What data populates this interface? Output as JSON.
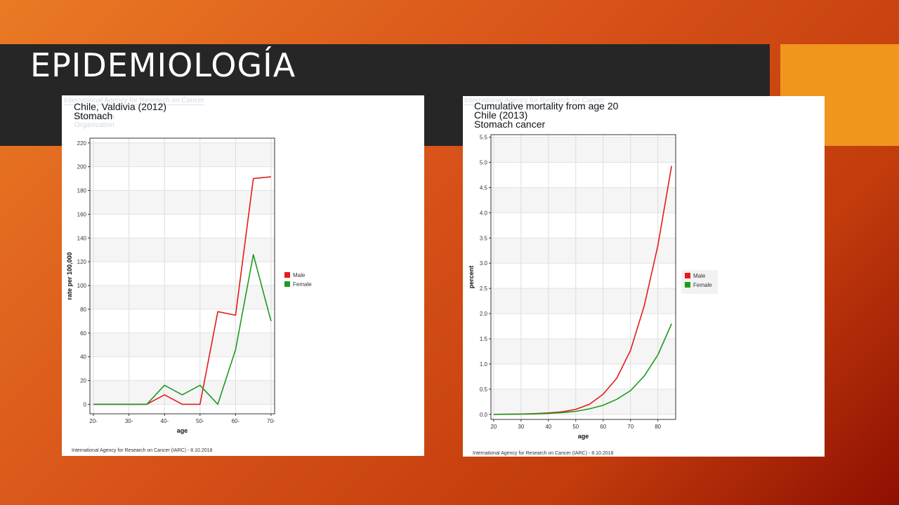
{
  "slide": {
    "title": "EPIDEMIOLOGÍA"
  },
  "colors": {
    "male": "#e41a1c",
    "female": "#1e9a1e"
  },
  "chart_data": [
    {
      "type": "line",
      "title": "Chile, Valdivia (2012)",
      "subtitle": "Stomach",
      "watermark": "International Agency for Research on Cancer",
      "watermark2": "World Health Organization",
      "xlabel": "age",
      "ylabel": "rate per 100,000",
      "x": [
        20,
        25,
        30,
        35,
        40,
        45,
        50,
        55,
        60,
        65,
        70
      ],
      "xlim": [
        19,
        71
      ],
      "ylim": [
        -8,
        224
      ],
      "xticks": [
        20,
        30,
        40,
        50,
        60,
        70
      ],
      "xtick_labels": [
        "20-",
        "30-",
        "40-",
        "50-",
        "60-",
        "70-"
      ],
      "yticks": [
        0,
        20,
        40,
        60,
        80,
        100,
        120,
        140,
        160,
        180,
        200,
        220
      ],
      "grid": true,
      "legend_position": "right",
      "series": [
        {
          "name": "Male",
          "values": [
            0,
            0,
            0,
            0,
            8,
            0,
            0,
            78,
            75,
            190,
            191.5
          ]
        },
        {
          "name": "Female",
          "values": [
            0,
            0,
            0,
            0,
            16,
            8,
            16,
            0,
            46,
            126,
            70
          ]
        }
      ],
      "footer": "International Agency for Research on Cancer (IARC) - 8.10.2018"
    },
    {
      "type": "line",
      "title": "Cumulative mortality from age 20",
      "subtitle": "Chile (2013)",
      "subtitle2": "Stomach cancer",
      "watermark": "International Agency for Research on Cancer",
      "xlabel": "age",
      "ylabel": "percent",
      "x": [
        20,
        25,
        30,
        35,
        40,
        45,
        50,
        55,
        60,
        65,
        70,
        75,
        80,
        85
      ],
      "xlim": [
        19,
        86.5
      ],
      "ylim": [
        -0.1,
        5.55
      ],
      "xticks": [
        20,
        30,
        40,
        50,
        60,
        70,
        80
      ],
      "xtick_labels": [
        "20",
        "30",
        "40",
        "50",
        "60",
        "70",
        "80"
      ],
      "yticks": [
        0,
        0.5,
        1,
        1.5,
        2,
        2.5,
        3,
        3.5,
        4,
        4.5,
        5,
        5.5
      ],
      "ytick_labels": [
        "0.0",
        "0.5",
        "1.0",
        "1.5",
        "2.0",
        "2.5",
        "3.0",
        "3.5",
        "4.0",
        "4.5",
        "5.0",
        "5.5"
      ],
      "grid": true,
      "legend_position": "right",
      "series": [
        {
          "name": "Male",
          "values": [
            0,
            0.003,
            0.007,
            0.015,
            0.03,
            0.05,
            0.1,
            0.2,
            0.4,
            0.72,
            1.27,
            2.15,
            3.35,
            4.93
          ]
        },
        {
          "name": "Female",
          "values": [
            0,
            0.002,
            0.005,
            0.01,
            0.02,
            0.035,
            0.06,
            0.11,
            0.18,
            0.3,
            0.47,
            0.76,
            1.18,
            1.8
          ]
        }
      ],
      "footer": "International Agency for Research on Cancer (IARC) - 8.10.2018"
    }
  ]
}
